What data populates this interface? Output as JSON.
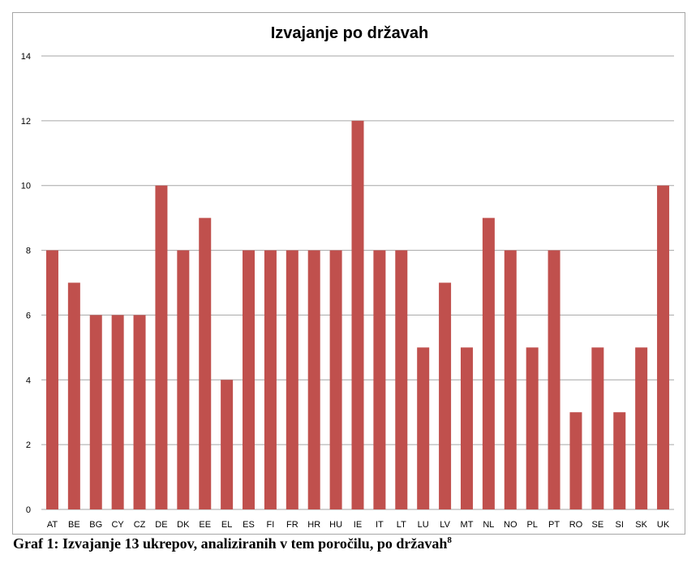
{
  "chart_data": {
    "type": "bar",
    "title": "Izvajanje po državah",
    "xlabel": "",
    "ylabel": "",
    "categories": [
      "AT",
      "BE",
      "BG",
      "CY",
      "CZ",
      "DE",
      "DK",
      "EE",
      "EL",
      "ES",
      "FI",
      "FR",
      "HR",
      "HU",
      "IE",
      "IT",
      "LT",
      "LU",
      "LV",
      "MT",
      "NL",
      "NO",
      "PL",
      "PT",
      "RO",
      "SE",
      "SI",
      "SK",
      "UK"
    ],
    "values": [
      8,
      7,
      6,
      6,
      6,
      10,
      8,
      9,
      4,
      8,
      8,
      8,
      8,
      8,
      12,
      8,
      8,
      5,
      7,
      5,
      9,
      8,
      5,
      8,
      3,
      5,
      3,
      5,
      10
    ],
    "ylim": [
      0,
      14
    ],
    "yticks": [
      "0",
      "2",
      "4",
      "6",
      "8",
      "10",
      "12",
      "14"
    ],
    "grid": true,
    "legend": "none",
    "bar_color": "#c0504d",
    "grid_color": "#a6a6a6"
  },
  "caption": {
    "text": "Graf 1: Izvajanje 13 ukrepov, analiziranih v tem poročilu, po državah",
    "footnote": "8"
  }
}
